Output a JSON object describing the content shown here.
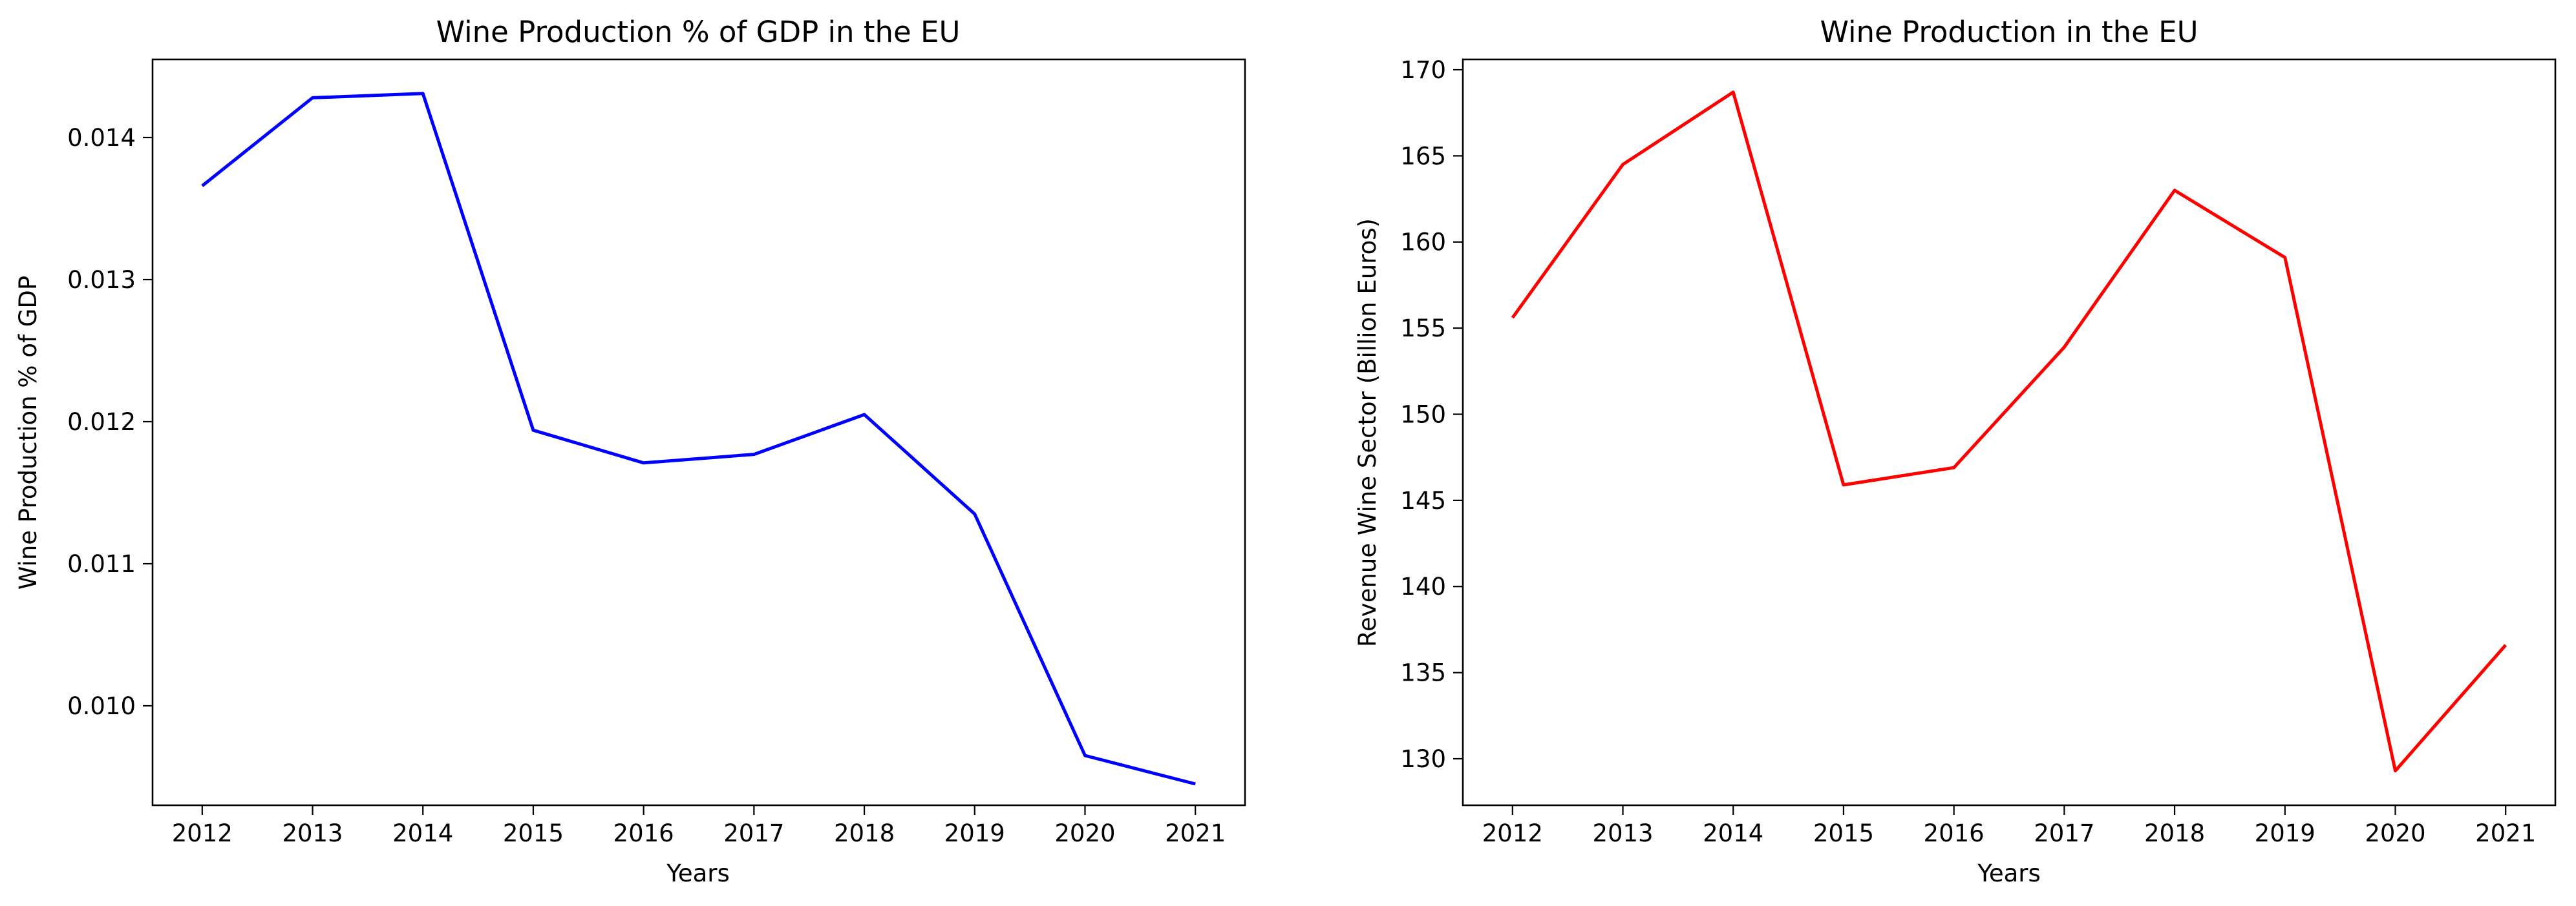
{
  "chart_data": [
    {
      "type": "line",
      "title": "Wine Production % of GDP in the EU",
      "xlabel": "Years",
      "ylabel": "Wine Production % of GDP",
      "x": [
        2012,
        2013,
        2014,
        2015,
        2016,
        2017,
        2018,
        2019,
        2020,
        2021
      ],
      "xticks": [
        "2012",
        "2013",
        "2014",
        "2015",
        "2016",
        "2017",
        "2018",
        "2019",
        "2020",
        "2021"
      ],
      "yticks": [
        "0.010",
        "0.011",
        "0.012",
        "0.013",
        "0.014"
      ],
      "ytick_values": [
        0.01,
        0.011,
        0.012,
        0.013,
        0.014
      ],
      "ylim": [
        0.0093,
        0.01455
      ],
      "xlim": [
        2011.55,
        2021.45
      ],
      "grid": false,
      "series": [
        {
          "color": "#0000ff",
          "values": [
            0.01366,
            0.01428,
            0.01431,
            0.01194,
            0.01171,
            0.01177,
            0.01205,
            0.01135,
            0.00965,
            0.00945
          ]
        }
      ]
    },
    {
      "type": "line",
      "title": "Wine Production in the EU",
      "xlabel": "Years",
      "ylabel": "Revenue Wine Sector (Billion Euros)",
      "x": [
        2012,
        2013,
        2014,
        2015,
        2016,
        2017,
        2018,
        2019,
        2020,
        2021
      ],
      "xticks": [
        "2012",
        "2013",
        "2014",
        "2015",
        "2016",
        "2017",
        "2018",
        "2019",
        "2020",
        "2021"
      ],
      "yticks": [
        "130",
        "135",
        "140",
        "145",
        "150",
        "155",
        "160",
        "165",
        "170"
      ],
      "ytick_values": [
        130,
        135,
        140,
        145,
        150,
        155,
        160,
        165,
        170
      ],
      "ylim": [
        127.3,
        170.6
      ],
      "xlim": [
        2011.55,
        2021.45
      ],
      "grid": false,
      "series": [
        {
          "color": "#ff0000",
          "values": [
            155.6,
            164.5,
            168.7,
            145.9,
            146.9,
            153.9,
            163.0,
            159.1,
            129.3,
            136.6
          ]
        }
      ]
    }
  ]
}
